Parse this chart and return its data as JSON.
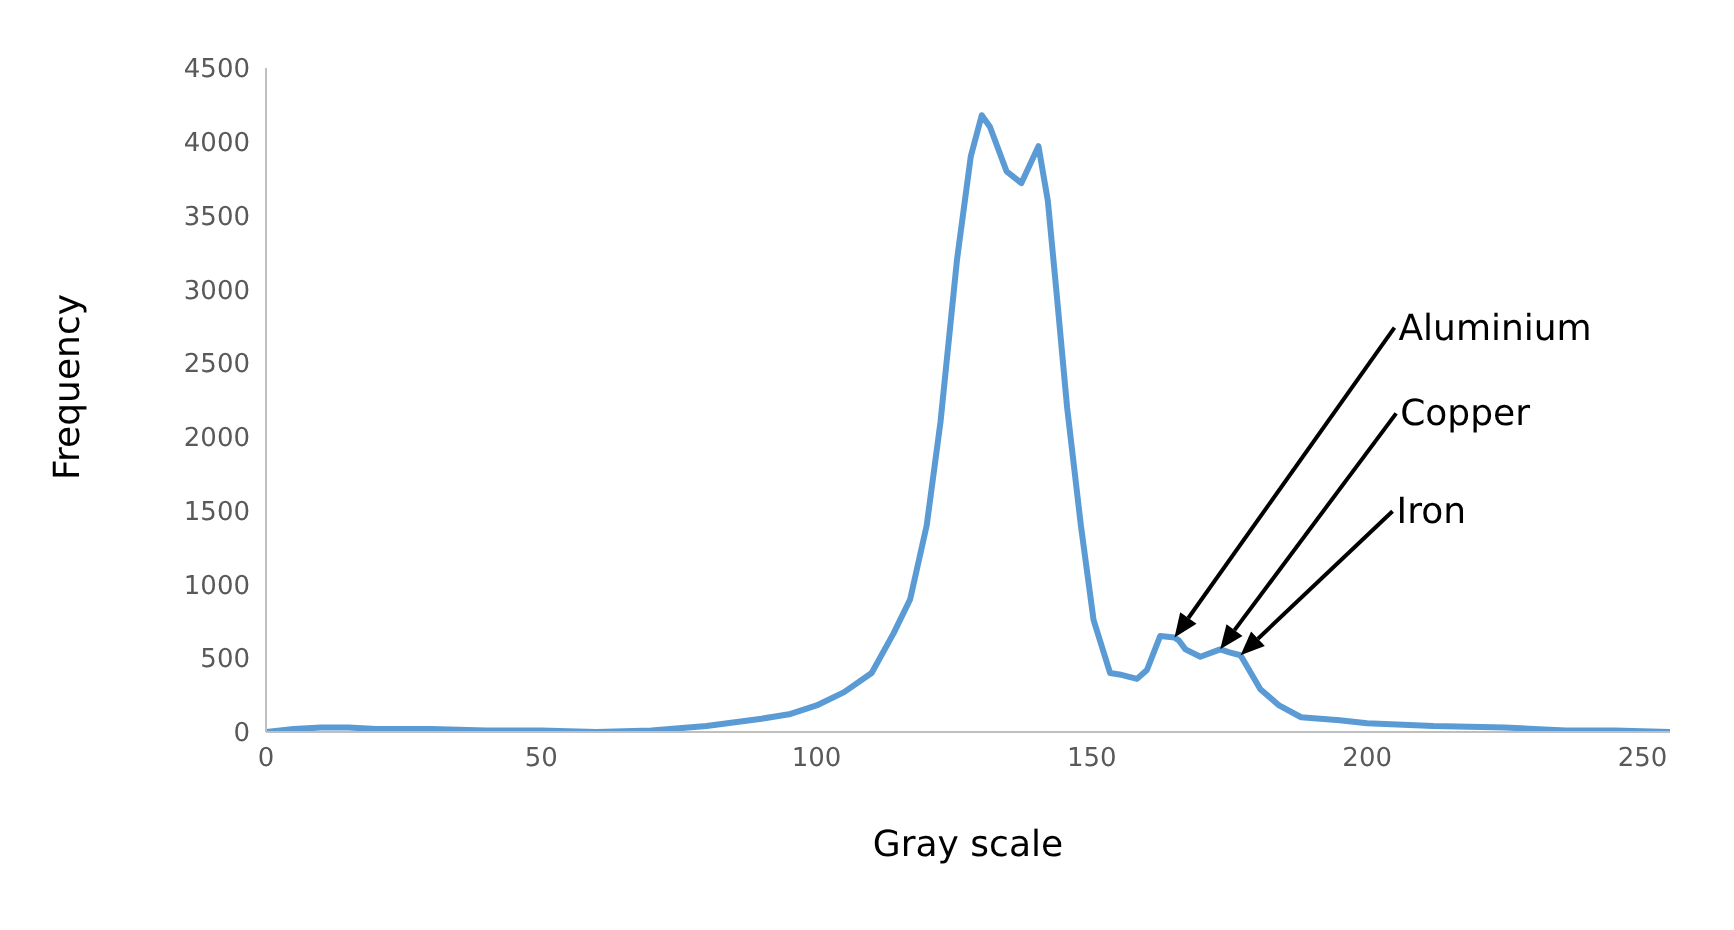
{
  "chart_data": {
    "type": "line",
    "xlabel": "Gray scale",
    "ylabel": "Frequency",
    "xlim": [
      0,
      255
    ],
    "xticks": [
      0,
      50,
      100,
      150,
      200,
      250
    ],
    "ylim": [
      0,
      4500
    ],
    "yticks": [
      0,
      500,
      1000,
      1500,
      2000,
      2500,
      3000,
      3500,
      4000,
      4500
    ],
    "grid": false,
    "legend": false,
    "marker": "none",
    "line_style": "solid",
    "series": [
      {
        "color": "#5b9bd5",
        "x": [
          0,
          5,
          10,
          15,
          20,
          30,
          40,
          50,
          60,
          70,
          80,
          90,
          95,
          100,
          105,
          110,
          114,
          117,
          120,
          122.5,
          125.5,
          128,
          130,
          131.5,
          134.5,
          137.2,
          140.3,
          142,
          143.6,
          145.5,
          148,
          150.3,
          153.3,
          155,
          158.2,
          160,
          162.4,
          165,
          165.8,
          167,
          169.7,
          173.3,
          175,
          177,
          180.6,
          184,
          188,
          195,
          200,
          212,
          225,
          236,
          245,
          255
        ],
        "values": [
          0,
          20,
          30,
          30,
          20,
          20,
          10,
          10,
          0,
          10,
          40,
          90,
          120,
          180,
          270,
          400,
          670,
          900,
          1400,
          2100,
          3200,
          3900,
          4180,
          4100,
          3800,
          3720,
          3970,
          3600,
          2970,
          2200,
          1400,
          760,
          400,
          390,
          360,
          420,
          650,
          640,
          620,
          560,
          510,
          560,
          540,
          520,
          290,
          180,
          100,
          80,
          60,
          40,
          30,
          10,
          10,
          0
        ]
      }
    ],
    "annotations": [
      "Aluminium",
      "Copper",
      "Iron"
    ]
  }
}
